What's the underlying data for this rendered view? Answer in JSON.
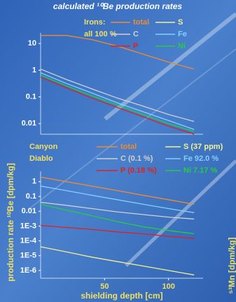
{
  "side_label": "⁵³Mn [dpm/kg]",
  "chart_data": [
    {
      "type": "line",
      "title": "calculated ¹⁰Be production rates",
      "log_y": true,
      "legend_title": [
        "Irons:",
        "all 100 %"
      ],
      "x": [
        0,
        20,
        40,
        60,
        80,
        100,
        120
      ],
      "xlim": [
        0,
        127
      ],
      "ylim": [
        0.004,
        25
      ],
      "yticks": [
        0.01,
        0.1,
        1,
        10
      ],
      "series": [
        {
          "name": "total",
          "color": "#f08a30",
          "values": [
            20,
            20,
            14,
            8,
            4,
            2,
            1.1
          ]
        },
        {
          "name": "S",
          "color": "#f4f090",
          "values": [
            null,
            null,
            null,
            null,
            null,
            null,
            null
          ]
        },
        {
          "name": "C",
          "color": "#d0d0d0",
          "values": [
            1.1,
            0.45,
            0.2,
            0.09,
            0.045,
            0.022,
            0.012
          ]
        },
        {
          "name": "Fe",
          "color": "#80d0ff",
          "values": [
            0.8,
            0.32,
            0.14,
            0.06,
            0.028,
            0.013,
            0.006
          ]
        },
        {
          "name": "P",
          "color": "#e02020",
          "values": [
            0.55,
            0.22,
            0.09,
            0.04,
            0.018,
            0.008,
            0.004
          ]
        },
        {
          "name": "Ni",
          "color": "#20d040",
          "values": [
            0.65,
            0.26,
            0.11,
            0.05,
            0.022,
            0.01,
            0.005
          ]
        }
      ]
    },
    {
      "type": "line",
      "log_y": true,
      "xlabel": "shielding depth [cm]",
      "ylabel": "production rate ¹⁰Be [dpm/kg]",
      "legend_title": [
        "Canyon",
        "Diablo"
      ],
      "x": [
        0,
        20,
        40,
        60,
        80,
        100,
        120
      ],
      "xlim": [
        0,
        127
      ],
      "xticks": [
        50,
        100
      ],
      "ylim": [
        3e-07,
        5
      ],
      "yticks": [
        1,
        0.1,
        0.01,
        {
          "value": 0.001,
          "label": "1E-3"
        },
        {
          "value": 0.0001,
          "label": "1E-4"
        },
        {
          "value": 1e-05,
          "label": "1E-5"
        },
        {
          "value": 1e-06,
          "label": "1E-6"
        }
      ],
      "series": [
        {
          "name": "total",
          "color": "#f08a30",
          "values": [
            2,
            1,
            0.5,
            0.25,
            0.12,
            0.06,
            0.03
          ]
        },
        {
          "name": "S (37 ppm)",
          "color": "#f4f090",
          "values": [
            4e-05,
            1.8e-05,
            8e-06,
            4e-06,
            2e-06,
            1e-06,
            5e-07
          ]
        },
        {
          "name": "C (0.1 %)",
          "color": "#d0d0d0",
          "values": [
            0.04,
            0.025,
            0.015,
            0.009,
            0.006,
            0.004,
            0.003
          ]
        },
        {
          "name": "Fe 92.0 %",
          "color": "#80d0ff",
          "values": [
            0.5,
            0.25,
            0.12,
            0.06,
            0.03,
            0.015,
            0.008
          ]
        },
        {
          "name": "P (0.18 %)",
          "color": "#e02020",
          "values": [
            0.0011,
            0.0008,
            0.0006,
            0.0004,
            0.0003,
            0.0002,
            0.00015
          ]
        },
        {
          "name": "Ni 7.17 %",
          "color": "#20d040",
          "values": [
            0.03,
            0.012,
            0.005,
            0.002,
            0.0009,
            0.0005,
            0.0003
          ]
        }
      ]
    }
  ]
}
